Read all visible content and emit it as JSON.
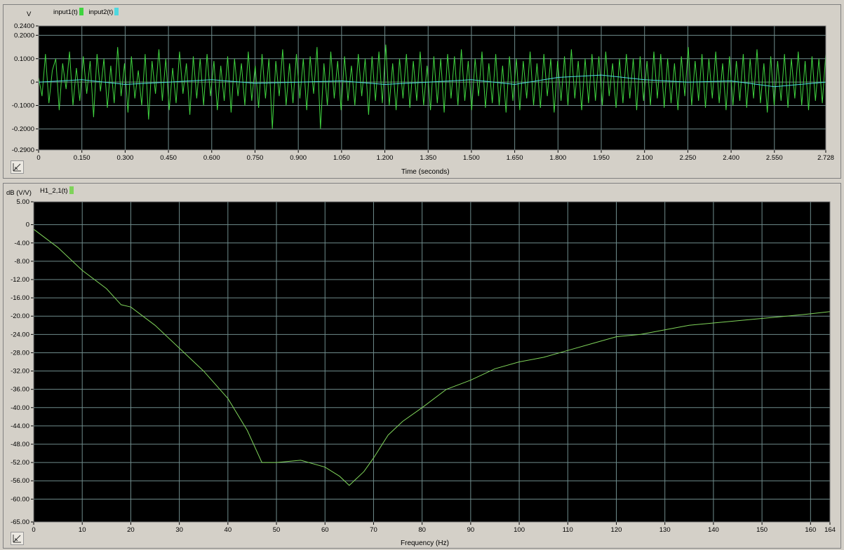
{
  "chart_data": [
    {
      "type": "line",
      "ylabel": "V",
      "xlabel": "Time (seconds)",
      "xlim": [
        0,
        2.728
      ],
      "ylim": [
        -0.29,
        0.24
      ],
      "ytick_labels": [
        "0.2400",
        "0.2000",
        "0.1000",
        "0",
        "-0.1000",
        "-0.2000",
        "-0.2900"
      ],
      "ytick_values": [
        0.24,
        0.2,
        0.1,
        0,
        -0.1,
        -0.2,
        -0.29
      ],
      "xtick_labels": [
        "0",
        "0.150",
        "0.300",
        "0.450",
        "0.600",
        "0.750",
        "0.900",
        "1.050",
        "1.200",
        "1.350",
        "1.500",
        "1.650",
        "1.800",
        "1.950",
        "2.100",
        "2.250",
        "2.400",
        "2.550",
        "2.728"
      ],
      "xtick_values": [
        0,
        0.15,
        0.3,
        0.45,
        0.6,
        0.75,
        0.9,
        1.05,
        1.2,
        1.35,
        1.5,
        1.65,
        1.8,
        1.95,
        2.1,
        2.25,
        2.4,
        2.55,
        2.728
      ],
      "grid": true,
      "legend_position": "top-left",
      "series": [
        {
          "name": "input1(t)",
          "color": "#3fd43f",
          "x_range": [
            0,
            2.728
          ],
          "values": [
            0.02,
            -0.06,
            0.12,
            -0.09,
            0.05,
            0.1,
            -0.12,
            0.08,
            -0.03,
            0.13,
            -0.1,
            0.06,
            -0.08,
            0.11,
            -0.05,
            0.09,
            -0.15,
            0.12,
            -0.04,
            0.1,
            -0.11,
            0.07,
            -0.09,
            0.15,
            -0.06,
            0.08,
            -0.13,
            0.11,
            -0.07,
            0.05,
            -0.1,
            0.12,
            -0.16,
            0.09,
            -0.05,
            0.14,
            -0.08,
            0.1,
            -0.12,
            0.06,
            -0.09,
            0.13,
            -0.05,
            0.08,
            -0.14,
            0.11,
            -0.07,
            0.1,
            -0.1,
            0.12,
            -0.06,
            0.09,
            -0.12,
            0.07,
            -0.08,
            0.11,
            -0.13,
            0.1,
            -0.06,
            0.08,
            -0.1,
            0.13,
            -0.08,
            0.07,
            -0.11,
            0.12,
            -0.07,
            0.1,
            -0.2,
            0.09,
            -0.06,
            0.14,
            -0.1,
            0.08,
            -0.09,
            0.12,
            -0.07,
            0.1,
            -0.12,
            0.11,
            -0.05,
            0.15,
            -0.2,
            0.08,
            -0.1,
            0.13,
            -0.07,
            0.09,
            -0.12,
            0.11,
            -0.08,
            0.07,
            -0.1,
            0.12,
            -0.06,
            0.1,
            -0.14,
            0.11,
            -0.08,
            0.13,
            -0.09,
            0.16,
            -0.1,
            0.08,
            -0.12,
            0.1,
            -0.07,
            0.12,
            -0.11,
            0.09,
            -0.08,
            0.13,
            -0.1,
            0.07,
            -0.12,
            0.11,
            -0.09,
            0.1,
            -0.13,
            0.12,
            -0.07,
            0.11,
            -0.1,
            0.14,
            -0.08,
            0.09,
            -0.12,
            0.1,
            -0.06,
            0.13,
            -0.11,
            0.08,
            -0.09,
            0.12,
            -0.1,
            0.07,
            -0.13,
            0.11,
            -0.08,
            0.1,
            -0.12,
            0.09,
            -0.07,
            0.13,
            -0.1,
            0.08,
            -0.11,
            0.12,
            -0.06,
            0.1,
            -0.13,
            0.09,
            -0.08,
            0.11,
            -0.1,
            0.14,
            -0.07,
            0.09,
            -0.12,
            0.1,
            -0.09,
            0.12,
            -0.08,
            0.11,
            -0.1,
            0.13,
            -0.06,
            0.08,
            -0.11,
            0.1,
            -0.09,
            0.12,
            -0.07,
            0.1,
            -0.12,
            0.11,
            -0.08,
            0.09,
            -0.1,
            0.13,
            -0.07,
            0.12,
            -0.11,
            0.1,
            -0.09,
            0.08,
            -0.12,
            0.11,
            -0.06,
            0.15,
            -0.1,
            0.09,
            -0.08,
            0.12,
            -0.11,
            0.1,
            -0.07,
            0.13,
            -0.09,
            0.08,
            -0.12,
            0.11,
            -0.1,
            0.09,
            -0.08,
            0.12,
            -0.11,
            0.1,
            -0.07,
            0.14,
            -0.09,
            0.08,
            -0.13,
            0.11,
            -0.1,
            0.09,
            -0.08,
            0.12,
            -0.11,
            0.1,
            -0.07,
            0.13,
            -0.1,
            0.09,
            -0.12,
            0.11,
            -0.08,
            0.1,
            -0.09,
            0.12
          ]
        },
        {
          "name": "input2(t)",
          "color": "#4fd8e0",
          "x": [
            0,
            0.15,
            0.3,
            0.45,
            0.6,
            0.75,
            0.9,
            1.05,
            1.2,
            1.35,
            1.5,
            1.65,
            1.8,
            1.95,
            2.1,
            2.25,
            2.4,
            2.55,
            2.728
          ],
          "values": [
            0.0,
            0.01,
            -0.01,
            0.0,
            0.01,
            -0.005,
            0.0,
            0.005,
            -0.01,
            0.0,
            0.01,
            -0.01,
            0.02,
            0.03,
            0.01,
            0.0,
            0.005,
            -0.02,
            0.0
          ]
        }
      ]
    },
    {
      "type": "line",
      "ylabel": "dB (V/V)",
      "xlabel": "Frequency (Hz)",
      "xlim": [
        0,
        164
      ],
      "ylim": [
        -65,
        5
      ],
      "ytick_labels": [
        "5.00",
        "0",
        "-4.00",
        "-8.00",
        "-12.00",
        "-16.00",
        "-20.00",
        "-24.00",
        "-28.00",
        "-32.00",
        "-36.00",
        "-40.00",
        "-44.00",
        "-48.00",
        "-52.00",
        "-56.00",
        "-60.00",
        "-65.00"
      ],
      "ytick_values": [
        5,
        0,
        -4,
        -8,
        -12,
        -16,
        -20,
        -24,
        -28,
        -32,
        -36,
        -40,
        -44,
        -48,
        -52,
        -56,
        -60,
        -65
      ],
      "xtick_labels": [
        "0",
        "10",
        "20",
        "30",
        "40",
        "50",
        "60",
        "70",
        "80",
        "90",
        "100",
        "110",
        "120",
        "130",
        "140",
        "150",
        "160",
        "164"
      ],
      "xtick_values": [
        0,
        10,
        20,
        30,
        40,
        50,
        60,
        70,
        80,
        90,
        100,
        110,
        120,
        130,
        140,
        150,
        160,
        164
      ],
      "grid": true,
      "legend_position": "top-left",
      "series": [
        {
          "name": "H1_2,1(t)",
          "color": "#7fd35a",
          "x": [
            0,
            5,
            10,
            15,
            18,
            20,
            25,
            30,
            35,
            40,
            44,
            47,
            50,
            55,
            60,
            63,
            65,
            68,
            70,
            73,
            76,
            80,
            85,
            90,
            95,
            100,
            105,
            110,
            115,
            120,
            125,
            130,
            135,
            140,
            145,
            150,
            155,
            160,
            164
          ],
          "values": [
            -1,
            -5,
            -10,
            -14,
            -17.5,
            -18,
            -22,
            -27,
            -32,
            -38,
            -45,
            -52,
            -52,
            -51.5,
            -53,
            -55,
            -57,
            -54,
            -51,
            -46,
            -43,
            -40,
            -36,
            -34,
            -31.5,
            -30,
            -29,
            -27.5,
            -26,
            -24.5,
            -24,
            -23,
            -22,
            -21.5,
            -21,
            -20.5,
            -20,
            -19.5,
            -19
          ]
        }
      ]
    }
  ]
}
